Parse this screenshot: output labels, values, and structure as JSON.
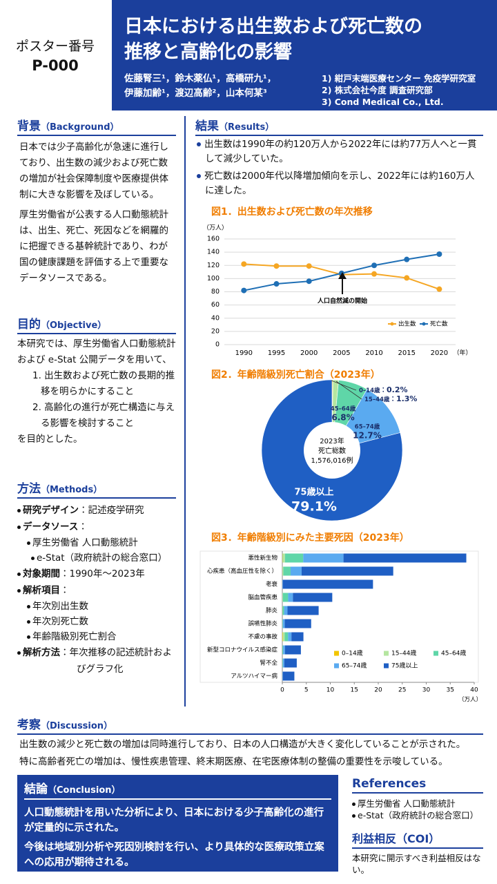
{
  "header": {
    "poster_label": "ポスター番号",
    "poster_number": "P-000",
    "title_lines": [
      "日本における出生数および死亡数の",
      "推移と高齢化の影響"
    ],
    "author_lines": [
      "佐藤腎三¹，鈴木薬仏¹，高橋研九¹，",
      "伊藤加齢¹，渡辺高齢²，山本何某³"
    ],
    "affiliations": [
      "1) 紺戸末端医療センター 免疫学研究室",
      "2) 株式会社今度 調査研究部",
      "3) Cond Medical Co., Ltd."
    ]
  },
  "background": {
    "heading": "背景",
    "heading_en": "（Background）",
    "paragraphs": [
      "日本では少子高齢化が急速に進行しており、出生数の減少および死亡数の増加が社会保障制度や医療提供体制に大きな影響を及ぼしている。",
      "厚生労働省が公表する人口動態統計は、出生、死亡、死因などを網羅的に把握できる基幹統計であり、わが国の健康課題を評価する上で重要なデータソースである。"
    ]
  },
  "objective": {
    "heading": "目的",
    "heading_en": "（Objective）",
    "intro": "本研究では、厚生労働省人口動態統計および e-Stat 公開データを用いて、",
    "items": [
      "1. 出生数および死亡数の長期的推移を明らかにすること",
      "2. 高齢化の進行が死亡構造に与える影響を検討すること"
    ],
    "outro": "を目的とした。"
  },
  "methods": {
    "heading": "方法",
    "heading_en": "（Methods）",
    "items": [
      {
        "label": "研究デザイン",
        "value": "：記述疫学研究"
      },
      {
        "label": "データソース",
        "value": "：",
        "subitems": [
          "厚生労働省 人口動態統計",
          "e-Stat（政府統計の総合窓口）"
        ]
      },
      {
        "label": "対象期間",
        "value": "：1990年～2023年"
      },
      {
        "label": "解析項目",
        "value": "：",
        "subitems": [
          "年次別出生数",
          "年次別死亡数",
          "年齢階級別死亡割合"
        ]
      },
      {
        "label": "解析方法",
        "value": "：年次推移の記述統計およびグラフ化"
      }
    ]
  },
  "results": {
    "heading": "結果",
    "heading_en": "（Results）",
    "bullets": [
      "出生数は1990年の約120万人から2022年には約77万人へと一貫して減少していた。",
      "死亡数は2000年代以降増加傾向を示し、2022年には約160万人に達した。"
    ]
  },
  "chart_data": [
    {
      "type": "line",
      "title": "図1．出生数および死亡数の年次推移",
      "y_unit": "（万人）",
      "x_unit": "（年）",
      "x": [
        1990,
        1995,
        2000,
        2005,
        2010,
        2015,
        2020
      ],
      "xlim": [
        1987,
        2022.5
      ],
      "ylim": [
        0,
        160
      ],
      "yticks": [
        0,
        20,
        40,
        60,
        80,
        100,
        120,
        140,
        160
      ],
      "grid": true,
      "legend": "lower right",
      "annotation": "人口自然減の開始",
      "series": [
        {
          "name": "出生数",
          "color": "#f5a623",
          "values": [
            122,
            119,
            119,
            106,
            107,
            101,
            84
          ]
        },
        {
          "name": "死亡数",
          "color": "#1f6fb5",
          "values": [
            82,
            92,
            96,
            108,
            120,
            129,
            137
          ]
        }
      ]
    },
    {
      "type": "pie",
      "title": "図2．年齢階級別死亡割合（2023年）",
      "categories": [
        "0–14歳",
        "15–44歳",
        "45–64歳",
        "65–74歳",
        "75歳以上"
      ],
      "values": [
        0.2,
        1.3,
        6.8,
        12.7,
        79.1
      ],
      "value_labels": [
        "0.2%",
        "1.3%",
        "6.8%",
        "12.7%",
        "79.1%"
      ],
      "colors": [
        "#f2c500",
        "#b5e6a0",
        "#5fd6a8",
        "#5aaaf0",
        "#1f5fc4"
      ],
      "label_separator": "：",
      "center_lines": [
        "2023年",
        "死亡総数",
        "1,576,016例"
      ]
    },
    {
      "type": "bar",
      "orientation": "horizontal",
      "stacked": true,
      "title": "図3．年齢階級別にみた主要死因（2023年）",
      "categories": [
        "悪性新生物",
        "心疾患（高血圧性を除く）",
        "老衰",
        "脳血管疾患",
        "肺炎",
        "誤嚥性肺炎",
        "不慮の事故",
        "新型コロナウイルス感染症",
        "腎不全",
        "アルツハイマー病"
      ],
      "x_unit": "（万人）",
      "xlim": [
        0,
        40
      ],
      "xticks": [
        0,
        5,
        10,
        15,
        20,
        25,
        30,
        35,
        40
      ],
      "legend": "lower right",
      "series": [
        {
          "name": "0–14歳",
          "color": "#f2c500",
          "values": [
            0.05,
            0.02,
            0,
            0.01,
            0.02,
            0,
            0.1,
            0,
            0,
            0
          ]
        },
        {
          "name": "15–44歳",
          "color": "#b5e6a0",
          "values": [
            0.5,
            0.2,
            0,
            0.1,
            0.05,
            0.01,
            0.4,
            0.02,
            0.01,
            0
          ]
        },
        {
          "name": "45–64歳",
          "color": "#5fd6a8",
          "values": [
            3.8,
            1.5,
            0,
            1.1,
            0.3,
            0.1,
            0.7,
            0.15,
            0.1,
            0.01
          ]
        },
        {
          "name": "65–74歳",
          "color": "#5aaaf0",
          "values": [
            8.4,
            2.3,
            0.1,
            1.0,
            0.7,
            0.4,
            0.7,
            0.4,
            0.3,
            0.1
          ]
        },
        {
          "name": "75歳以上",
          "color": "#1f5fc4",
          "values": [
            25.6,
            19.1,
            18.8,
            8.2,
            6.5,
            5.5,
            2.5,
            3.3,
            2.6,
            2.4
          ]
        }
      ]
    }
  ],
  "discussion": {
    "heading": "考察",
    "heading_en": "（Discussion）",
    "paragraphs": [
      "出生数の減少と死亡数の増加は同時進行しており、日本の人口構造が大きく変化していることが示された。",
      "特に高齢者死亡の増加は、慢性疾患管理、終末期医療、在宅医療体制の整備の重要性を示唆している。"
    ]
  },
  "conclusion": {
    "heading": "結論",
    "heading_en": "（Conclusion）",
    "paragraphs": [
      "人口動態統計を用いた分析により、日本における少子高齢化の進行が定量的に示された。",
      "今後は地域別分析や死因別検討を行い、より具体的な医療政策立案への応用が期待される。"
    ]
  },
  "references": {
    "heading": "References",
    "items": [
      "厚生労働省 人口動態統計",
      "e-Stat（政府統計の総合窓口）"
    ]
  },
  "coi": {
    "heading": "利益相反（COI）",
    "text": "本研究に開示すべき利益相反はない。"
  }
}
